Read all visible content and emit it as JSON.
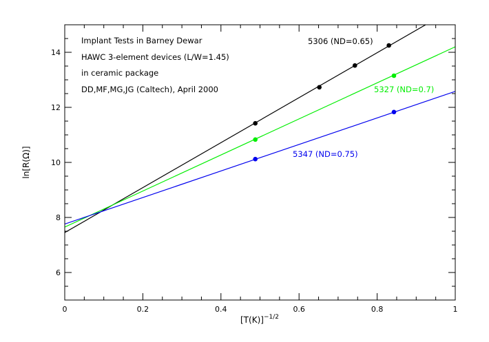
{
  "chart_data": {
    "type": "scatter",
    "xlabel": "[T(K)]",
    "xlabel_exponent": "−1/2",
    "ylabel": "ln[R(Ω)]",
    "xlim": [
      0,
      1
    ],
    "ylim": [
      5,
      15
    ],
    "x_ticks": [
      0,
      0.2,
      0.4,
      0.6,
      0.8,
      1
    ],
    "x_tick_labels": [
      "0",
      "0.2",
      "0.4",
      "0.6",
      "0.8",
      "1"
    ],
    "y_ticks": [
      6,
      8,
      10,
      12,
      14
    ],
    "y_tick_labels": [
      "6",
      "8",
      "10",
      "12",
      "14"
    ],
    "annotations": [
      "Implant Tests in Barney Dewar",
      "HAWC 3-element devices (L/W=1.45)",
      "in ceramic package",
      "DD,MF,MG,JG (Caltech), April 2000"
    ],
    "series": [
      {
        "name": "5306 (ND=0.65)",
        "color": "#000000",
        "points": [
          {
            "x": 0.488,
            "y": 11.42
          },
          {
            "x": 0.652,
            "y": 12.73
          },
          {
            "x": 0.743,
            "y": 13.52
          },
          {
            "x": 0.83,
            "y": 14.25
          }
        ],
        "fit": {
          "intercept": 7.45,
          "slope": 8.17
        }
      },
      {
        "name": "5327 (ND=0.7)",
        "color": "#00ee00",
        "points": [
          {
            "x": 0.488,
            "y": 10.83
          },
          {
            "x": 0.843,
            "y": 13.15
          }
        ],
        "fit": {
          "intercept": 7.65,
          "slope": 6.55
        }
      },
      {
        "name": "5347 (ND=0.75)",
        "color": "#0000ee",
        "points": [
          {
            "x": 0.488,
            "y": 10.12
          },
          {
            "x": 0.843,
            "y": 11.83
          }
        ],
        "fit": {
          "intercept": 7.76,
          "slope": 4.82
        }
      }
    ]
  }
}
